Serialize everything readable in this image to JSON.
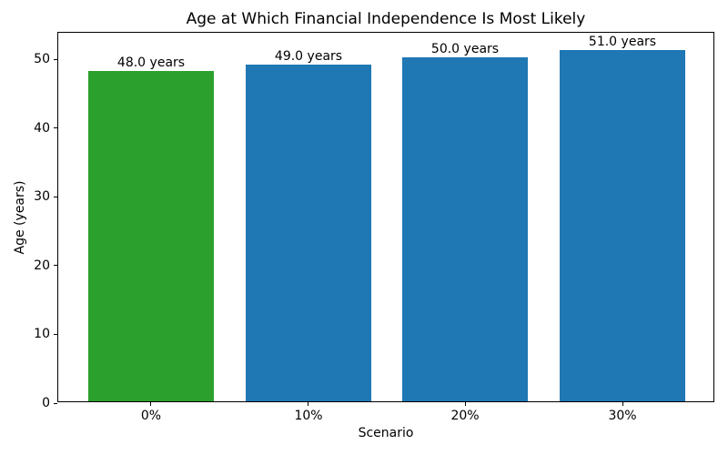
{
  "chart_data": {
    "type": "bar",
    "title": "Age at Which Financial Independence Is Most Likely",
    "xlabel": "Scenario",
    "ylabel": "Age (years)",
    "categories": [
      "0%",
      "10%",
      "20%",
      "30%"
    ],
    "values": [
      48.0,
      49.0,
      50.0,
      51.0
    ],
    "bar_labels": [
      "48.0 years",
      "49.0 years",
      "50.0 years",
      "51.0 years"
    ],
    "bar_colors": [
      "#2ca02c",
      "#1f77b4",
      "#1f77b4",
      "#1f77b4"
    ],
    "yticks": [
      0,
      10,
      20,
      30,
      40,
      50
    ],
    "ylim": [
      0,
      53.84
    ],
    "grid": false,
    "legend": "none",
    "spine_color": "#000000",
    "background_color": "#ffffff"
  }
}
